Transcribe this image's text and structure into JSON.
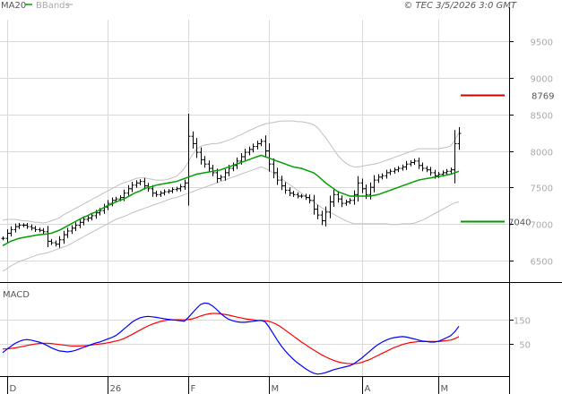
{
  "header": {
    "legend_ma": "MA20",
    "legend_bbands": "BBands",
    "source": "© TEC 3/5/2026 3:0 GMT"
  },
  "colors": {
    "background": "#ffffff",
    "grid": "#d9d9d9",
    "axis": "#000000",
    "price_bars": "#000000",
    "ma20": "#00a000",
    "bbands": "#c0c0c0",
    "macd": "#0000ff",
    "signal": "#ff0000",
    "resistance": "#cc0000",
    "support": "#009900"
  },
  "chart_data": [
    {
      "type": "ohlc",
      "ylim": [
        6200,
        9800
      ],
      "y_ticks": [
        6500,
        7000,
        7500,
        8000,
        8500,
        9000,
        9500
      ],
      "x_tick_labels": [
        {
          "label": "D",
          "index": 1
        },
        {
          "label": "26",
          "index": 26
        },
        {
          "label": "F",
          "index": 46
        },
        {
          "label": "M",
          "index": 66
        },
        {
          "label": "A",
          "index": 89
        },
        {
          "label": "M",
          "index": 108
        }
      ],
      "levels": [
        {
          "name": "resistance",
          "value": 8769,
          "label": "8769",
          "color": "#cc0000"
        },
        {
          "name": "support",
          "value": 7040,
          "label": "7040",
          "color": "#009900"
        }
      ],
      "close": [
        6800,
        6870,
        6920,
        6960,
        6980,
        6980,
        6960,
        6940,
        6920,
        6910,
        6890,
        6760,
        6740,
        6720,
        6780,
        6850,
        6900,
        6940,
        6980,
        7020,
        7060,
        7080,
        7110,
        7150,
        7180,
        7230,
        7280,
        7320,
        7340,
        7360,
        7420,
        7480,
        7530,
        7560,
        7580,
        7520,
        7480,
        7420,
        7400,
        7420,
        7440,
        7450,
        7470,
        7480,
        7510,
        7560,
        8200,
        8100,
        7980,
        7880,
        7820,
        7760,
        7700,
        7620,
        7640,
        7700,
        7760,
        7800,
        7860,
        7920,
        7980,
        8020,
        8060,
        8100,
        8130,
        8000,
        7820,
        7700,
        7600,
        7520,
        7460,
        7420,
        7400,
        7380,
        7380,
        7360,
        7320,
        7200,
        7120,
        7040,
        7160,
        7300,
        7400,
        7340,
        7280,
        7300,
        7320,
        7400,
        7560,
        7480,
        7400,
        7500,
        7600,
        7640,
        7660,
        7700,
        7720,
        7740,
        7760,
        7780,
        7820,
        7840,
        7860,
        7800,
        7760,
        7740,
        7700,
        7660,
        7680,
        7700,
        7720,
        7740,
        8100,
        8240
      ],
      "series": [
        {
          "name": "MA20",
          "values": [
            6700,
            6730,
            6760,
            6780,
            6800,
            6810,
            6820,
            6830,
            6840,
            6850,
            6855,
            6860,
            6870,
            6890,
            6910,
            6940,
            6970,
            7000,
            7030,
            7060,
            7090,
            7110,
            7140,
            7160,
            7190,
            7220,
            7250,
            7270,
            7300,
            7320,
            7340,
            7370,
            7400,
            7430,
            7450,
            7480,
            7500,
            7510,
            7530,
            7540,
            7550,
            7560,
            7570,
            7580,
            7600,
            7620,
            7640,
            7660,
            7680,
            7690,
            7700,
            7710,
            7720,
            7730,
            7740,
            7760,
            7780,
            7800,
            7820,
            7840,
            7860,
            7880,
            7900,
            7920,
            7940,
            7920,
            7900,
            7880,
            7860,
            7840,
            7820,
            7800,
            7780,
            7770,
            7760,
            7740,
            7720,
            7700,
            7660,
            7610,
            7560,
            7520,
            7480,
            7440,
            7420,
            7400,
            7380,
            7380,
            7380,
            7380,
            7380,
            7380,
            7390,
            7400,
            7420,
            7440,
            7460,
            7480,
            7500,
            7520,
            7540,
            7560,
            7580,
            7600,
            7610,
            7620,
            7630,
            7640,
            7650,
            7660,
            7670,
            7680,
            7700,
            7720
          ]
        },
        {
          "name": "BBand upper",
          "values": [
            7050,
            7060,
            7060,
            7060,
            7050,
            7040,
            7040,
            7030,
            7020,
            7020,
            7010,
            7020,
            7040,
            7060,
            7080,
            7120,
            7150,
            7180,
            7210,
            7240,
            7270,
            7300,
            7330,
            7360,
            7390,
            7420,
            7450,
            7480,
            7510,
            7540,
            7560,
            7580,
            7600,
            7620,
            7630,
            7630,
            7620,
            7610,
            7600,
            7600,
            7600,
            7610,
            7630,
            7650,
            7700,
            7760,
            7850,
            7950,
            8020,
            8060,
            8080,
            8090,
            8100,
            8100,
            8110,
            8130,
            8150,
            8170,
            8200,
            8220,
            8250,
            8280,
            8300,
            8330,
            8350,
            8370,
            8380,
            8390,
            8400,
            8410,
            8410,
            8410,
            8410,
            8400,
            8400,
            8390,
            8380,
            8360,
            8320,
            8250,
            8180,
            8100,
            8020,
            7940,
            7880,
            7830,
            7800,
            7780,
            7780,
            7790,
            7800,
            7810,
            7820,
            7830,
            7850,
            7870,
            7890,
            7910,
            7930,
            7950,
            7970,
            7990,
            8010,
            8030,
            8030,
            8030,
            8030,
            8030,
            8030,
            8040,
            8050,
            8070,
            8150,
            8250
          ]
        },
        {
          "name": "BBand lower",
          "values": [
            6350,
            6380,
            6420,
            6450,
            6480,
            6500,
            6520,
            6540,
            6560,
            6580,
            6590,
            6600,
            6620,
            6640,
            6660,
            6680,
            6700,
            6730,
            6760,
            6790,
            6820,
            6850,
            6880,
            6910,
            6940,
            6970,
            7000,
            7030,
            7060,
            7080,
            7100,
            7120,
            7150,
            7170,
            7190,
            7210,
            7230,
            7250,
            7270,
            7290,
            7310,
            7330,
            7350,
            7360,
            7380,
            7400,
            7420,
            7440,
            7460,
            7480,
            7500,
            7520,
            7540,
            7560,
            7580,
            7600,
            7620,
            7640,
            7660,
            7680,
            7700,
            7720,
            7740,
            7760,
            7780,
            7760,
            7730,
            7700,
            7660,
            7620,
            7580,
            7540,
            7500,
            7460,
            7420,
            7380,
            7340,
            7300,
            7260,
            7220,
            7190,
            7160,
            7130,
            7100,
            7070,
            7040,
            7020,
            7000,
            7000,
            7000,
            7000,
            7000,
            7000,
            7000,
            7000,
            7000,
            6990,
            6990,
            6990,
            7000,
            7000,
            7000,
            7010,
            7030,
            7050,
            7080,
            7110,
            7140,
            7170,
            7200,
            7230,
            7260,
            7290,
            7300
          ]
        }
      ]
    },
    {
      "type": "line",
      "ylim": [
        -80,
        290
      ],
      "y_ticks": [
        50,
        150
      ],
      "series": [
        {
          "name": "MACD",
          "values": [
            15,
            28,
            40,
            52,
            60,
            66,
            68,
            66,
            62,
            58,
            52,
            44,
            35,
            28,
            22,
            20,
            18,
            20,
            24,
            30,
            36,
            42,
            48,
            54,
            58,
            64,
            70,
            76,
            84,
            96,
            110,
            124,
            138,
            148,
            156,
            160,
            162,
            160,
            158,
            155,
            152,
            150,
            148,
            146,
            144,
            142,
            158,
            176,
            194,
            210,
            216,
            214,
            204,
            190,
            174,
            160,
            150,
            144,
            140,
            138,
            138,
            140,
            142,
            144,
            146,
            140,
            118,
            92,
            66,
            42,
            22,
            4,
            -12,
            -26,
            -38,
            -50,
            -60,
            -68,
            -72,
            -70,
            -66,
            -60,
            -54,
            -50,
            -46,
            -42,
            -38,
            -30,
            -18,
            -6,
            8,
            22,
            36,
            48,
            58,
            66,
            72,
            76,
            78,
            80,
            78,
            74,
            70,
            66,
            62,
            60,
            58,
            58,
            62,
            68,
            76,
            84,
            100,
            122
          ]
        },
        {
          "name": "Signal",
          "values": [
            30,
            30,
            32,
            34,
            37,
            40,
            44,
            47,
            50,
            52,
            53,
            53,
            52,
            50,
            48,
            46,
            44,
            42,
            42,
            42,
            43,
            44,
            46,
            48,
            50,
            52,
            55,
            58,
            62,
            66,
            72,
            80,
            88,
            97,
            106,
            115,
            123,
            130,
            136,
            141,
            144,
            147,
            148,
            148,
            148,
            148,
            149,
            152,
            157,
            163,
            168,
            172,
            174,
            174,
            172,
            170,
            167,
            163,
            159,
            156,
            152,
            150,
            148,
            146,
            145,
            144,
            142,
            136,
            128,
            118,
            106,
            94,
            82,
            70,
            58,
            48,
            36,
            26,
            16,
            6,
            -2,
            -10,
            -16,
            -22,
            -26,
            -28,
            -30,
            -30,
            -28,
            -24,
            -18,
            -12,
            -4,
            4,
            12,
            20,
            28,
            36,
            42,
            48,
            52,
            56,
            58,
            60,
            60,
            60,
            60,
            60,
            60,
            62,
            64,
            66,
            72,
            80
          ]
        }
      ]
    }
  ]
}
